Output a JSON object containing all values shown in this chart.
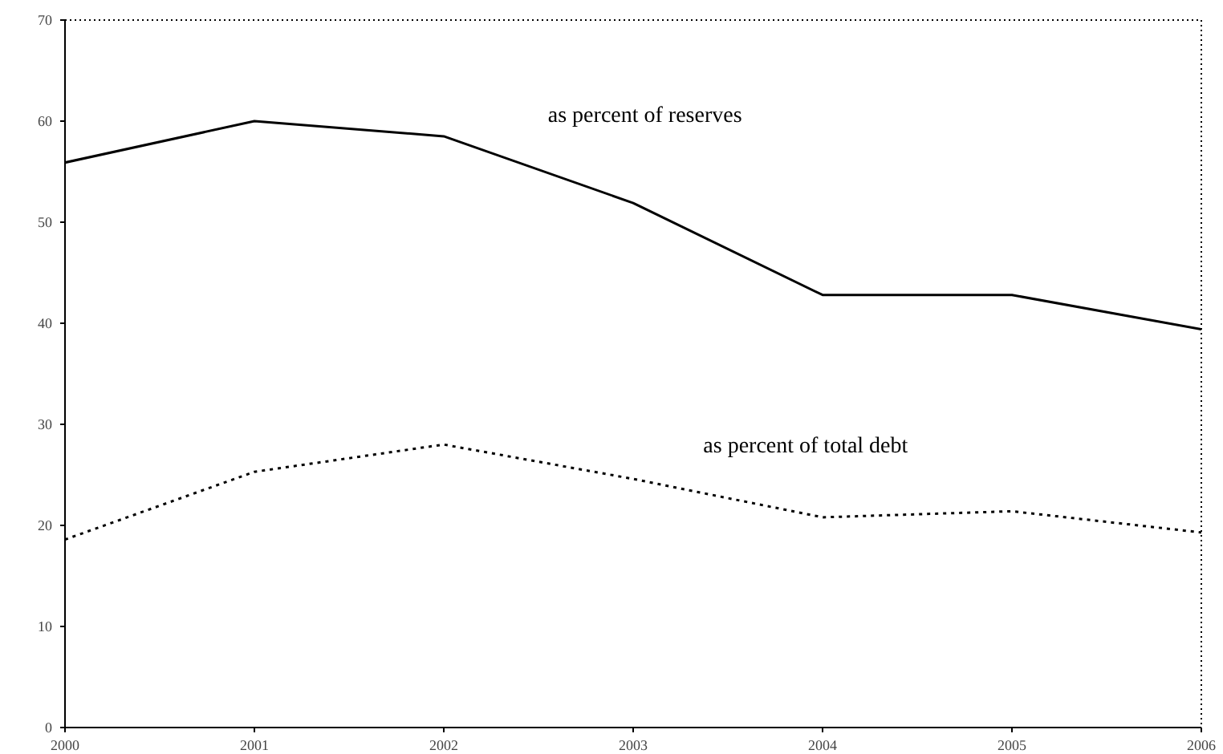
{
  "chart_data": {
    "type": "line",
    "x": [
      2000,
      2001,
      2002,
      2003,
      2004,
      2005,
      2006
    ],
    "series": [
      {
        "name": "as percent of reserves",
        "color": "#000000",
        "values": [
          55.9,
          60,
          58.5,
          51.9,
          42.8,
          42.8,
          39.4
        ],
        "line_style": "solid"
      },
      {
        "name": "as percent of total debt",
        "color": "#000000",
        "values": [
          18.6,
          25.3,
          28,
          24.6,
          20.8,
          21.4,
          19.3
        ],
        "line_style": "dotted"
      }
    ],
    "xlim": [
      2000,
      2006
    ],
    "xticks": [
      2000,
      2001,
      2002,
      2003,
      2004,
      2005,
      2006
    ],
    "ylim": [
      0,
      70
    ],
    "yticks": [
      0,
      10,
      20,
      30,
      40,
      50,
      60,
      70
    ],
    "grid": false
  }
}
